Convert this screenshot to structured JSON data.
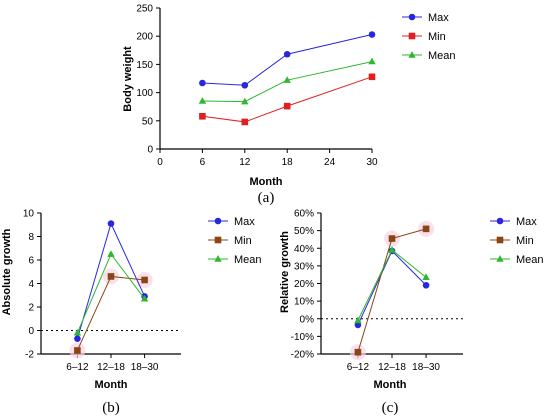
{
  "colors": {
    "max": "#2727e0",
    "min": "#e02020",
    "mean": "#2db82d",
    "min_brown": "#8b4513"
  },
  "chart_data": [
    {
      "type": "line",
      "panel": "a",
      "caption": "(a)",
      "xlabel": "Month",
      "ylabel": "Body weight",
      "xlim": [
        0,
        30
      ],
      "ylim": [
        0,
        250
      ],
      "xticks": [
        "0",
        "6",
        "12",
        "18",
        "24",
        "30"
      ],
      "yticks": [
        "0",
        "50",
        "100",
        "150",
        "200",
        "250"
      ],
      "x": [
        6,
        12,
        18,
        30
      ],
      "legend_position": "top-right",
      "series": [
        {
          "name": "Max",
          "marker": "circle",
          "values": [
            117,
            113,
            168,
            203
          ]
        },
        {
          "name": "Min",
          "marker": "square",
          "values": [
            58,
            48,
            76,
            128
          ]
        },
        {
          "name": "Mean",
          "marker": "triangle",
          "values": [
            85,
            84,
            122,
            155
          ]
        }
      ]
    },
    {
      "type": "line",
      "panel": "b",
      "caption": "(b)",
      "xlabel": "Month",
      "ylabel": "Absolute growth",
      "ylim": [
        -2,
        10
      ],
      "categories": [
        "6–12",
        "12–18",
        "18–30"
      ],
      "yticks": [
        "-2",
        "0",
        "2",
        "4",
        "6",
        "8",
        "10"
      ],
      "reference_line": 0,
      "legend_position": "right",
      "series": [
        {
          "name": "Max",
          "marker": "circle",
          "values": [
            -0.7,
            9.1,
            2.9
          ]
        },
        {
          "name": "Min",
          "marker": "square",
          "values": [
            -1.7,
            4.6,
            4.3
          ]
        },
        {
          "name": "Mean",
          "marker": "triangle",
          "values": [
            -0.2,
            6.5,
            2.7
          ]
        }
      ]
    },
    {
      "type": "line",
      "panel": "c",
      "caption": "(c)",
      "xlabel": "Month",
      "ylabel": "Relative growth",
      "ylim": [
        -20,
        60
      ],
      "categories": [
        "6–12",
        "12–18",
        "18–30"
      ],
      "yticks": [
        "-20%",
        "-10%",
        "0%",
        "10%",
        "20%",
        "30%",
        "40%",
        "50%",
        "60%"
      ],
      "reference_line": 0,
      "legend_position": "right",
      "series": [
        {
          "name": "Max",
          "marker": "circle",
          "values": [
            -3.5,
            38.5,
            19
          ]
        },
        {
          "name": "Min",
          "marker": "square",
          "values": [
            -19,
            45.5,
            51
          ]
        },
        {
          "name": "Mean",
          "marker": "triangle",
          "values": [
            -1,
            39,
            23.5
          ]
        }
      ]
    }
  ]
}
